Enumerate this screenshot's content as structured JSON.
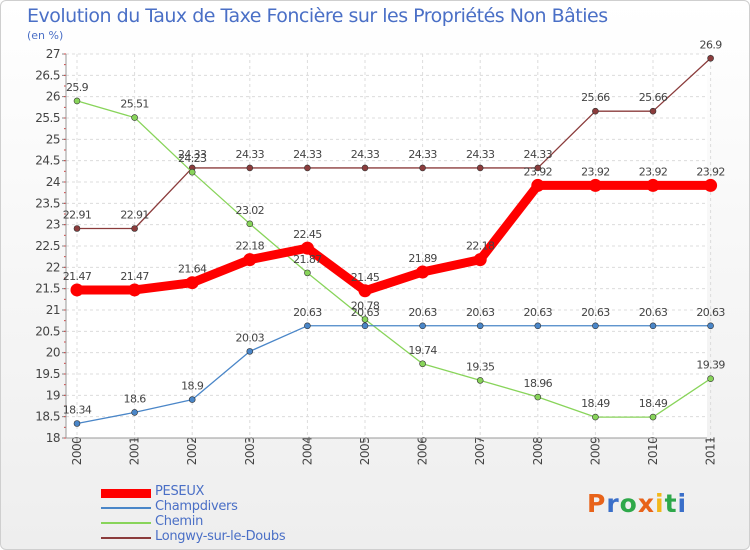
{
  "header": {
    "title": "Evolution du Taux de Taxe Foncière sur les Propriétés Non Bâties",
    "unit": "(en %)"
  },
  "brand": {
    "text": "Proxiti",
    "colors": [
      "#e8631a",
      "#3a6fc9",
      "#2ea84a",
      "#e8631a",
      "#f2b81a",
      "#2ea84a",
      "#3a6fc9"
    ]
  },
  "chart_data": {
    "type": "line",
    "title": "Evolution du Taux de Taxe Foncière sur les Propriétés Non Bâties",
    "ylabel": "(en %)",
    "xlabel": "",
    "ylim": [
      18,
      27
    ],
    "grid": true,
    "legend_position": "bottom-left",
    "x": [
      "2000",
      "2001",
      "2002",
      "2003",
      "2004",
      "2005",
      "2006",
      "2007",
      "2008",
      "2009",
      "2010",
      "2011"
    ],
    "yticks": [
      18,
      18.5,
      19,
      19.5,
      20,
      20.5,
      21,
      21.5,
      22,
      22.5,
      23,
      23.5,
      24,
      24.5,
      25,
      25.5,
      26,
      26.5,
      27
    ],
    "series": [
      {
        "name": "PESEUX",
        "color": "#ff0000",
        "values": [
          21.47,
          21.47,
          21.64,
          22.18,
          22.45,
          21.45,
          21.89,
          22.18,
          23.92,
          23.92,
          23.92,
          23.92
        ],
        "labels": [
          "21.47",
          "21.47",
          "21.64",
          "22.18",
          "22.45",
          "21.45",
          "21.89",
          "22.18",
          "23.92",
          "23.92",
          "23.92",
          "23.92"
        ]
      },
      {
        "name": "Champdivers",
        "color": "#4a86c8",
        "values": [
          18.34,
          18.6,
          18.9,
          20.03,
          20.63,
          20.63,
          20.63,
          20.63,
          20.63,
          20.63,
          20.63,
          20.63
        ],
        "labels": [
          "18.34",
          "18.6",
          "18.9",
          "20.03",
          "20.63",
          "20.63",
          "20.63",
          "20.63",
          "20.63",
          "20.63",
          "20.63",
          "20.63"
        ]
      },
      {
        "name": "Chemin",
        "color": "#88d45a",
        "values": [
          25.9,
          25.51,
          24.23,
          23.02,
          21.87,
          20.78,
          19.74,
          19.35,
          18.96,
          18.49,
          18.49,
          19.39
        ],
        "labels": [
          "25.9",
          "25.51",
          "24.23",
          "23.02",
          "21.87",
          "20.78",
          "19.74",
          "19.35",
          "18.96",
          "18.49",
          "18.49",
          "19.39"
        ]
      },
      {
        "name": "Longwy-sur-le-Doubs",
        "color": "#8b3c3c",
        "values": [
          22.91,
          22.91,
          24.33,
          24.33,
          24.33,
          24.33,
          24.33,
          24.33,
          24.33,
          25.66,
          25.66,
          26.9
        ],
        "labels": [
          "22.91",
          "22.91",
          "24.33",
          "24.33",
          "24.33",
          "24.33",
          "24.33",
          "24.33",
          "24.33",
          "25.66",
          "25.66",
          "26.9"
        ]
      }
    ]
  }
}
